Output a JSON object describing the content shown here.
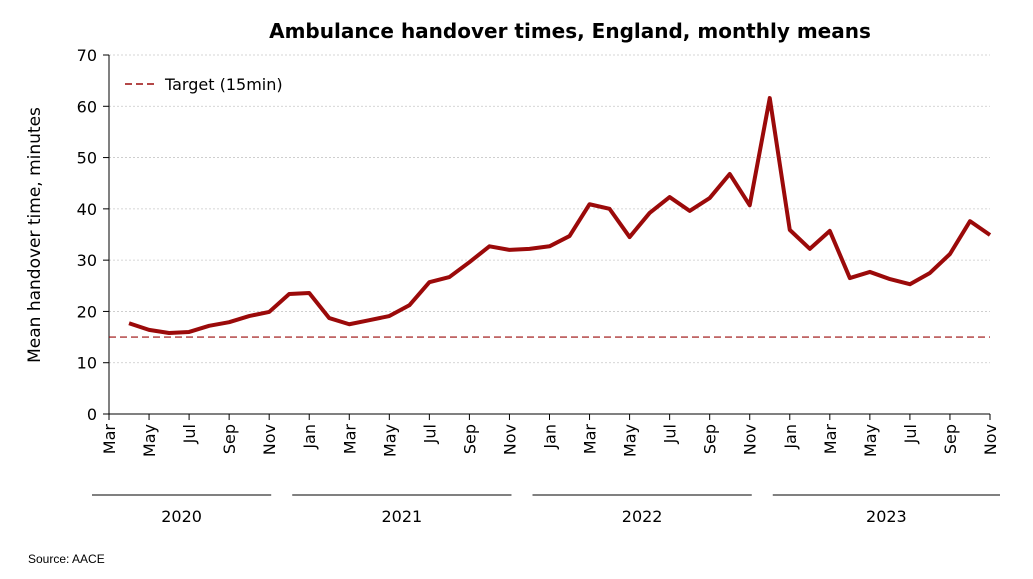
{
  "chart_data": {
    "type": "line",
    "title": "Ambulance handover times, England, monthly means",
    "y_label": "Mean handover time, minutes",
    "source": "Source: AACE",
    "categories": [
      "Mar",
      null,
      "May",
      null,
      "Jul",
      null,
      "Sep",
      null,
      "Nov",
      null,
      "Jan",
      null,
      "Mar",
      null,
      "May",
      null,
      "Jul",
      null,
      "Sep",
      null,
      "Nov",
      null,
      "Jan",
      null,
      "Mar",
      null,
      "May",
      null,
      "Jul",
      null,
      "Sep",
      null,
      "Nov",
      null,
      "Jan",
      null,
      "Mar",
      null,
      "May",
      null,
      "Jul",
      null,
      "Sep",
      null,
      "Nov"
    ],
    "years": [
      "2020",
      "2021",
      "2022",
      "2023"
    ],
    "series": [
      {
        "name": "Mean handover time",
        "color": "#9b0a0a",
        "values": [
          null,
          17.7,
          16.4,
          15.8,
          16.0,
          17.2,
          17.9,
          19.1,
          19.9,
          23.4,
          23.6,
          18.7,
          17.5,
          18.3,
          19.1,
          21.2,
          25.7,
          26.7,
          29.6,
          32.7,
          32.0,
          32.2,
          32.7,
          34.7,
          40.9,
          40.0,
          34.5,
          39.2,
          42.3,
          39.6,
          42.1,
          46.8,
          40.7,
          61.6,
          35.9,
          32.2,
          35.7,
          26.5,
          27.7,
          26.3,
          25.3,
          27.5,
          31.2,
          37.6,
          34.9
        ]
      }
    ],
    "target": {
      "name": "Target (15min)",
      "value": 15,
      "color": "#9b0a0a"
    },
    "ylim": [
      0,
      70
    ],
    "yticks": [
      0,
      10,
      20,
      30,
      40,
      50,
      60,
      70
    ],
    "grid": true,
    "legend": "upper left"
  }
}
